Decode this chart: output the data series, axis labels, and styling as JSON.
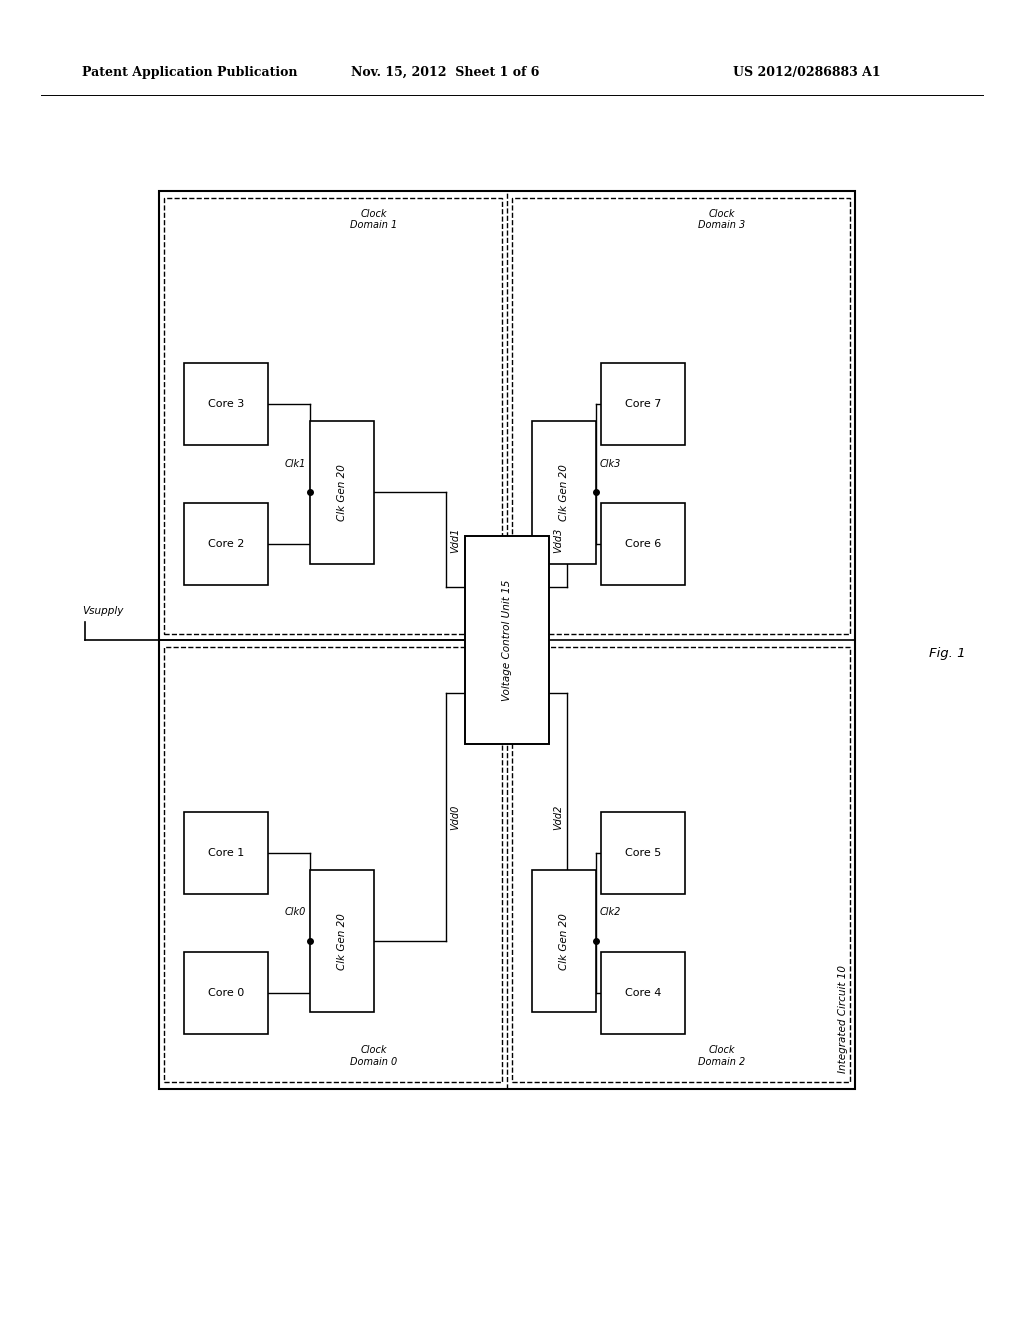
{
  "header_left": "Patent Application Publication",
  "header_mid": "Nov. 15, 2012  Sheet 1 of 6",
  "header_right": "US 2012/0286883 A1",
  "fig_label": "Fig. 1",
  "bg_color": "#ffffff",
  "OX": 0.155,
  "OY": 0.175,
  "OW": 0.68,
  "OH": 0.68,
  "cw": 0.082,
  "ch": 0.062,
  "cgw": 0.062,
  "cgh": 0.108,
  "vcuw": 0.082,
  "vcuh": 0.158
}
